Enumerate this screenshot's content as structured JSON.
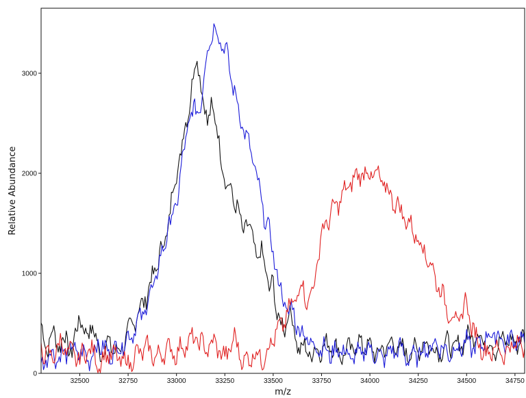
{
  "chart_data": {
    "type": "line",
    "xlabel": "m/z",
    "ylabel": "Relative Abundance",
    "xlim": [
      32300,
      34800
    ],
    "ylim": [
      0,
      3650
    ],
    "x_ticks": [
      32500,
      32750,
      33000,
      33250,
      33500,
      33750,
      34000,
      34250,
      34500,
      34750
    ],
    "y_ticks": [
      0,
      1000,
      2000,
      3000
    ],
    "grid": false,
    "legend": "none",
    "series": [
      {
        "color": "#111111",
        "x": [
          32300,
          32330,
          32360,
          32400,
          32430,
          32460,
          32500,
          32530,
          32560,
          32600,
          32650,
          32700,
          32750,
          32800,
          32850,
          32900,
          32950,
          32980,
          33000,
          33030,
          33060,
          33080,
          33100,
          33120,
          33140,
          33160,
          33180,
          33200,
          33220,
          33240,
          33260,
          33280,
          33300,
          33320,
          33340,
          33360,
          33380,
          33400,
          33420,
          33440,
          33460,
          33480,
          33500,
          33520,
          33540,
          33560,
          33580,
          33600,
          33620,
          33650,
          33700,
          33750,
          33800,
          33850,
          33900,
          33950,
          34000,
          34050,
          34100,
          34150,
          34200,
          34250,
          34300,
          34350,
          34400,
          34450,
          34500,
          34550,
          34600,
          34650,
          34700,
          34750,
          34800
        ],
        "values": [
          450,
          250,
          400,
          280,
          350,
          200,
          600,
          350,
          500,
          200,
          300,
          200,
          400,
          600,
          800,
          1100,
          1400,
          1800,
          2000,
          2300,
          2600,
          2900,
          3100,
          3050,
          2700,
          2450,
          2750,
          2500,
          2300,
          2100,
          1800,
          1900,
          1700,
          1600,
          1450,
          1500,
          1400,
          1350,
          1100,
          1200,
          1100,
          800,
          900,
          600,
          500,
          400,
          700,
          500,
          300,
          250,
          200,
          250,
          300,
          180,
          250,
          300,
          250,
          200,
          300,
          250,
          200,
          250,
          300,
          200,
          300,
          250,
          350,
          400,
          300,
          250,
          350,
          300,
          350
        ]
      },
      {
        "color": "#1a1ad8",
        "x": [
          32300,
          32350,
          32400,
          32450,
          32500,
          32550,
          32600,
          32650,
          32700,
          32750,
          32800,
          32850,
          32900,
          32950,
          33000,
          33030,
          33060,
          33100,
          33130,
          33160,
          33180,
          33200,
          33220,
          33240,
          33260,
          33280,
          33300,
          33320,
          33340,
          33360,
          33380,
          33400,
          33420,
          33440,
          33460,
          33480,
          33500,
          33520,
          33540,
          33560,
          33580,
          33600,
          33620,
          33650,
          33700,
          33750,
          33800,
          33850,
          33900,
          33950,
          34000,
          34050,
          34100,
          34150,
          34200,
          34250,
          34300,
          34350,
          34400,
          34450,
          34500,
          34550,
          34600,
          34650,
          34700,
          34750,
          34800
        ],
        "values": [
          100,
          200,
          150,
          250,
          200,
          150,
          300,
          200,
          250,
          350,
          500,
          700,
          1000,
          1400,
          1700,
          2100,
          2500,
          2650,
          2700,
          3300,
          3350,
          3450,
          3400,
          3250,
          3200,
          3000,
          2800,
          2650,
          2500,
          2350,
          2250,
          2100,
          1900,
          1700,
          1550,
          1400,
          1200,
          1000,
          800,
          700,
          600,
          650,
          500,
          400,
          300,
          250,
          200,
          250,
          150,
          200,
          250,
          150,
          200,
          250,
          150,
          200,
          250,
          300,
          200,
          250,
          300,
          250,
          350,
          400,
          300,
          350,
          300
        ]
      },
      {
        "color": "#e02020",
        "x": [
          32300,
          32350,
          32400,
          32450,
          32500,
          32550,
          32600,
          32650,
          32700,
          32750,
          32800,
          32850,
          32900,
          32950,
          33000,
          33050,
          33100,
          33150,
          33200,
          33250,
          33300,
          33350,
          33400,
          33450,
          33500,
          33550,
          33600,
          33650,
          33680,
          33700,
          33720,
          33750,
          33800,
          33850,
          33900,
          33950,
          34000,
          34050,
          34100,
          34150,
          34200,
          34250,
          34300,
          34350,
          34400,
          34450,
          34480,
          34500,
          34520,
          34550,
          34600,
          34650,
          34700,
          34750,
          34800
        ],
        "values": [
          250,
          150,
          300,
          200,
          150,
          250,
          100,
          200,
          150,
          100,
          200,
          250,
          150,
          250,
          200,
          300,
          350,
          250,
          300,
          150,
          350,
          100,
          200,
          150,
          350,
          500,
          700,
          900,
          700,
          800,
          1000,
          1400,
          1600,
          1750,
          1900,
          2000,
          2000,
          1950,
          1800,
          1650,
          1500,
          1350,
          1150,
          900,
          650,
          500,
          600,
          750,
          500,
          350,
          200,
          250,
          200,
          300,
          250
        ]
      }
    ]
  }
}
